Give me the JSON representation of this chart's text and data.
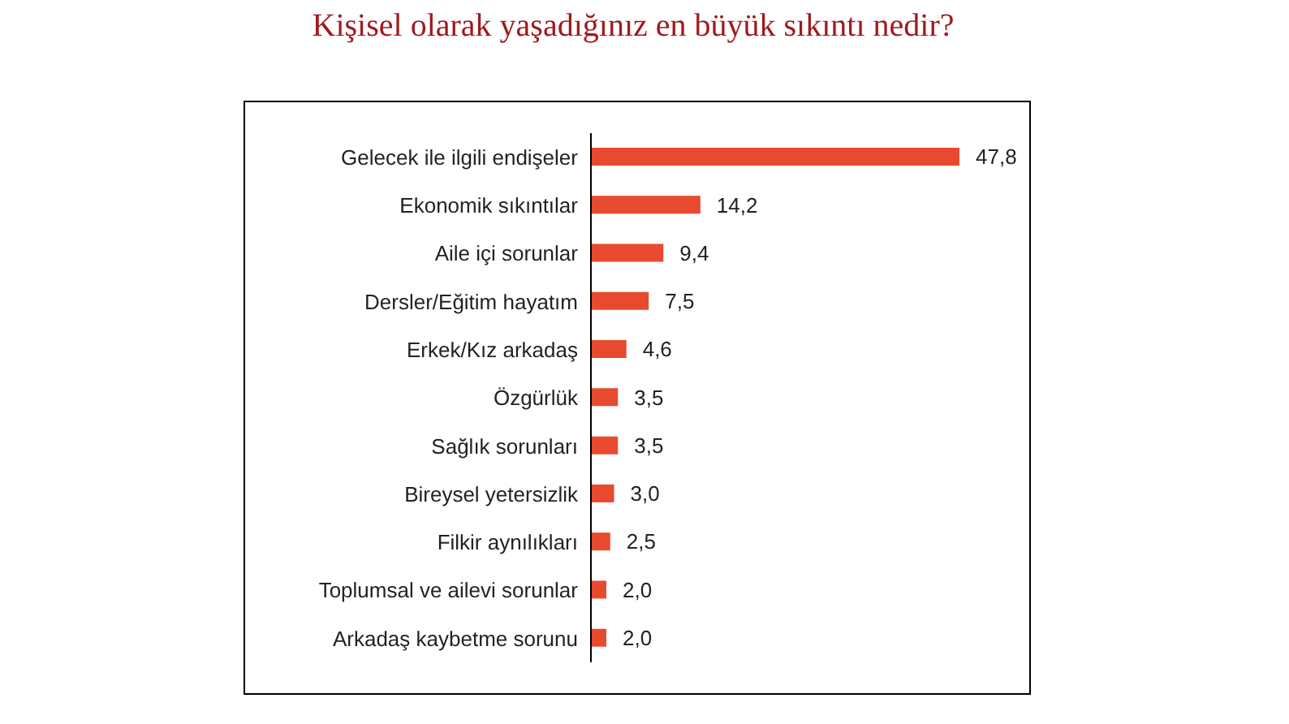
{
  "chart_data": {
    "type": "bar",
    "orientation": "horizontal",
    "title": "Kişisel olarak yaşadığınız en büyük sıkıntı nedir?",
    "categories": [
      "Gelecek ile ilgili endişeler",
      "Ekonomik sıkıntılar",
      "Aile içi sorunlar",
      "Dersler/Eğitim hayatım",
      "Erkek/Kız arkadaş",
      "Özgürlük",
      "Sağlık sorunları",
      "Bireysel yetersizlik",
      "Filkir aynılıkları",
      "Toplumsal ve ailevi sorunlar",
      "Arkadaş kaybetme sorunu"
    ],
    "values": [
      47.8,
      14.2,
      9.4,
      7.5,
      4.6,
      3.5,
      3.5,
      3.0,
      2.5,
      2.0,
      2.0
    ],
    "value_labels": [
      "47,8",
      "14,2",
      "9,4",
      "7,5",
      "4,6",
      "3,5",
      "3,5",
      "3,0",
      "2,5",
      "2,0",
      "2,0"
    ],
    "color": "#e84a2f",
    "grid": false,
    "legend": false
  }
}
